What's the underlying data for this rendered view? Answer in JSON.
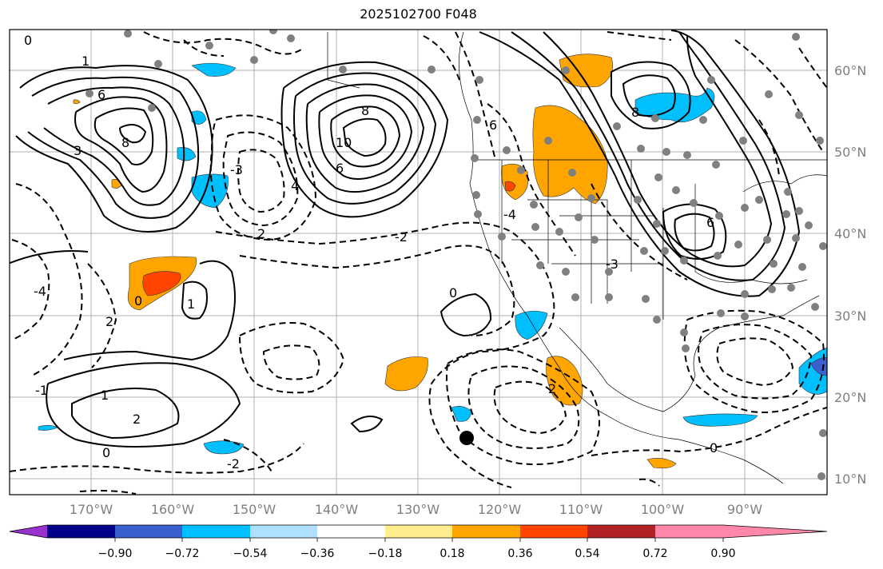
{
  "title": "2025102700 F048",
  "map": {
    "lon_labels": [
      "170°W",
      "160°W",
      "150°W",
      "140°W",
      "130°W",
      "120°W",
      "110°W",
      "100°W",
      "90°W"
    ],
    "lat_labels": [
      "60°N",
      "50°N",
      "40°N",
      "30°N",
      "20°N",
      "10°N"
    ],
    "contour_labels": [
      "1",
      "6",
      "8",
      "0",
      "3",
      "4",
      "2",
      "-3",
      "8",
      "10",
      "6",
      "-4",
      "0",
      "1",
      "2",
      "-1",
      "1",
      "2",
      "0",
      "6",
      "8",
      "-2",
      "-3",
      "0",
      "0",
      "-4",
      "-2",
      "2",
      "6"
    ]
  },
  "colorbar": {
    "colors": [
      "#9932cc",
      "#00008b",
      "#3b5fcf",
      "#00bfff",
      "#b0e0ff",
      "#ffffff",
      "#ffec8b",
      "#ffa500",
      "#ff4500",
      "#b22222",
      "#ff88aa"
    ],
    "tick_labels": [
      "−0.90",
      "−0.72",
      "−0.54",
      "−0.36",
      "−0.18",
      "0.18",
      "0.36",
      "0.54",
      "0.72",
      "0.90"
    ]
  }
}
